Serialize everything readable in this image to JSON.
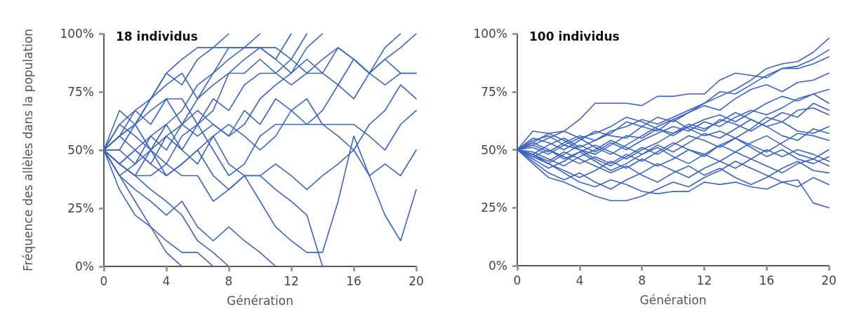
{
  "chart_data": [
    {
      "type": "line",
      "title": "18 individus",
      "xlabel": "Génération",
      "ylabel": "Fréquence des allèles dans la population",
      "x": [
        0,
        1,
        2,
        3,
        4,
        5,
        6,
        7,
        8,
        9,
        10,
        11,
        12,
        13,
        14,
        15,
        16,
        17,
        18,
        19,
        20
      ],
      "xlim": [
        0,
        20
      ],
      "xticks": [
        0,
        4,
        8,
        12,
        16,
        20
      ],
      "ylim": [
        0,
        100
      ],
      "yticks": [
        {
          "value": 0,
          "label": "0%"
        },
        {
          "value": 25,
          "label": "25%"
        },
        {
          "value": 50,
          "label": "50%"
        },
        {
          "value": 75,
          "label": "75%"
        },
        {
          "value": 100,
          "label": "100%"
        }
      ],
      "grid": false,
      "marker": "none",
      "line_style": "solid",
      "series": [
        {
          "color": "#3b64c2",
          "values": [
            50,
            56,
            67,
            72,
            83,
            89,
            94,
            94,
            100,
            null,
            null,
            null,
            null,
            null,
            null,
            null,
            null,
            null,
            null,
            null,
            null
          ]
        },
        {
          "color": "#3b64c2",
          "values": [
            50,
            67,
            61,
            72,
            83,
            78,
            89,
            94,
            94,
            94,
            100,
            null,
            null,
            null,
            null,
            null,
            null,
            null,
            null,
            null,
            null
          ]
        },
        {
          "color": "#3b64c2",
          "values": [
            50,
            56,
            61,
            72,
            78,
            83,
            72,
            83,
            94,
            94,
            94,
            89,
            100,
            null,
            null,
            null,
            null,
            null,
            null,
            null,
            null
          ]
        },
        {
          "color": "#3b64c2",
          "values": [
            50,
            50,
            61,
            67,
            72,
            61,
            72,
            78,
            83,
            83,
            89,
            83,
            89,
            100,
            null,
            null,
            null,
            null,
            null,
            null,
            null
          ]
        },
        {
          "color": "#3b64c2",
          "values": [
            50,
            61,
            56,
            50,
            61,
            67,
            78,
            83,
            89,
            94,
            94,
            89,
            83,
            94,
            100,
            null,
            null,
            null,
            null,
            null,
            null
          ]
        },
        {
          "color": "#3b64c2",
          "values": [
            50,
            44,
            50,
            56,
            61,
            50,
            61,
            72,
            67,
            78,
            83,
            83,
            78,
            83,
            89,
            94,
            89,
            83,
            89,
            94,
            100
          ]
        },
        {
          "color": "#3b64c2",
          "values": [
            50,
            56,
            50,
            44,
            56,
            61,
            56,
            61,
            56,
            67,
            61,
            72,
            67,
            61,
            67,
            78,
            89,
            83,
            94,
            100,
            null
          ]
        },
        {
          "color": "#3b64c2",
          "values": [
            50,
            61,
            67,
            61,
            72,
            72,
            61,
            67,
            83,
            89,
            94,
            94,
            89,
            83,
            83,
            78,
            72,
            83,
            89,
            83,
            83
          ]
        },
        {
          "color": "#3b64c2",
          "values": [
            50,
            50,
            44,
            56,
            50,
            61,
            67,
            61,
            56,
            61,
            72,
            78,
            83,
            89,
            83,
            94,
            89,
            83,
            78,
            83,
            83
          ]
        },
        {
          "color": "#3b64c2",
          "values": [
            50,
            44,
            39,
            50,
            56,
            50,
            44,
            56,
            61,
            56,
            50,
            56,
            67,
            72,
            61,
            56,
            50,
            61,
            67,
            78,
            72
          ]
        },
        {
          "color": "#3b64c2",
          "values": [
            50,
            56,
            61,
            50,
            44,
            56,
            61,
            50,
            39,
            44,
            56,
            61,
            61,
            61,
            61,
            61,
            61,
            56,
            50,
            61,
            67
          ]
        },
        {
          "color": "#3b64c2",
          "values": [
            50,
            39,
            44,
            50,
            39,
            44,
            50,
            39,
            33,
            39,
            28,
            17,
            11,
            6,
            6,
            28,
            56,
            39,
            22,
            11,
            33
          ]
        },
        {
          "color": "#3b64c2",
          "values": [
            50,
            44,
            39,
            39,
            44,
            39,
            39,
            28,
            33,
            39,
            39,
            33,
            28,
            22,
            0,
            null,
            null,
            null,
            null,
            null,
            null
          ]
        },
        {
          "color": "#3b64c2",
          "values": [
            50,
            39,
            33,
            28,
            22,
            28,
            17,
            11,
            17,
            11,
            6,
            0,
            null,
            null,
            null,
            null,
            null,
            null,
            null,
            null,
            null
          ]
        },
        {
          "color": "#3b64c2",
          "values": [
            50,
            39,
            28,
            17,
            11,
            6,
            6,
            0,
            null,
            null,
            null,
            null,
            null,
            null,
            null,
            null,
            null,
            null,
            null,
            null,
            null
          ]
        },
        {
          "color": "#3b64c2",
          "values": [
            50,
            33,
            22,
            17,
            6,
            0,
            null,
            null,
            null,
            null,
            null,
            null,
            null,
            null,
            null,
            null,
            null,
            null,
            null,
            null,
            null
          ]
        },
        {
          "color": "#3b64c2",
          "values": [
            50,
            44,
            39,
            33,
            28,
            22,
            11,
            6,
            0,
            null,
            null,
            null,
            null,
            null,
            null,
            null,
            null,
            null,
            null,
            null,
            null
          ]
        },
        {
          "color": "#3b64c2",
          "values": [
            50,
            44,
            50,
            44,
            39,
            44,
            50,
            56,
            44,
            39,
            39,
            44,
            39,
            33,
            39,
            44,
            50,
            39,
            44,
            39,
            50
          ]
        }
      ]
    },
    {
      "type": "line",
      "title": "100 individus",
      "xlabel": "Génération",
      "x": [
        0,
        1,
        2,
        3,
        4,
        5,
        6,
        7,
        8,
        9,
        10,
        11,
        12,
        13,
        14,
        15,
        16,
        17,
        18,
        19,
        20
      ],
      "xlim": [
        0,
        20
      ],
      "xticks": [
        0,
        4,
        8,
        12,
        16,
        20
      ],
      "ylim": [
        0,
        100
      ],
      "yticks": [
        {
          "value": 0,
          "label": "0%"
        },
        {
          "value": 25,
          "label": "25%"
        },
        {
          "value": 50,
          "label": "50%"
        },
        {
          "value": 75,
          "label": "75%"
        },
        {
          "value": 100,
          "label": "100%"
        }
      ],
      "grid": false,
      "marker": "none",
      "line_style": "solid",
      "series": [
        {
          "color": "#3b64c2",
          "values": [
            50,
            52,
            49,
            53,
            56,
            54,
            58,
            60,
            63,
            61,
            64,
            67,
            70,
            73,
            76,
            80,
            85,
            87,
            88,
            92,
            98
          ]
        },
        {
          "color": "#3b64c2",
          "values": [
            50,
            55,
            53,
            50,
            54,
            58,
            56,
            55,
            60,
            64,
            62,
            66,
            70,
            75,
            74,
            78,
            82,
            85,
            86,
            89,
            93
          ]
        },
        {
          "color": "#3b64c2",
          "values": [
            50,
            58,
            57,
            58,
            63,
            70,
            70,
            70,
            69,
            73,
            73,
            74,
            74,
            80,
            83,
            82,
            81,
            85,
            85,
            87,
            90
          ]
        },
        {
          "color": "#3b64c2",
          "values": [
            50,
            48,
            52,
            55,
            51,
            54,
            57,
            62,
            60,
            58,
            63,
            66,
            69,
            67,
            72,
            76,
            78,
            75,
            79,
            80,
            83
          ]
        },
        {
          "color": "#3b64c2",
          "values": [
            50,
            53,
            57,
            54,
            50,
            48,
            52,
            56,
            55,
            59,
            57,
            60,
            63,
            65,
            62,
            66,
            70,
            73,
            71,
            74,
            76
          ]
        },
        {
          "color": "#3b64c2",
          "values": [
            50,
            47,
            44,
            48,
            52,
            49,
            53,
            50,
            54,
            57,
            60,
            58,
            62,
            60,
            64,
            67,
            65,
            68,
            72,
            74,
            70
          ]
        },
        {
          "color": "#3b64c2",
          "values": [
            50,
            54,
            56,
            52,
            55,
            57,
            60,
            64,
            62,
            59,
            56,
            60,
            58,
            63,
            61,
            58,
            62,
            66,
            64,
            70,
            67
          ]
        },
        {
          "color": "#3b64c2",
          "values": [
            50,
            46,
            42,
            45,
            49,
            52,
            49,
            46,
            50,
            53,
            57,
            61,
            59,
            62,
            66,
            63,
            60,
            62,
            67,
            68,
            65
          ]
        },
        {
          "color": "#3b64c2",
          "values": [
            50,
            52,
            55,
            58,
            55,
            51,
            48,
            52,
            56,
            60,
            63,
            59,
            56,
            58,
            55,
            59,
            64,
            62,
            58,
            57,
            60
          ]
        },
        {
          "color": "#3b64c2",
          "values": [
            50,
            49,
            46,
            43,
            47,
            50,
            54,
            51,
            48,
            52,
            49,
            53,
            57,
            55,
            59,
            63,
            60,
            56,
            54,
            59,
            57
          ]
        },
        {
          "color": "#3b64c2",
          "values": [
            50,
            51,
            48,
            52,
            50,
            46,
            43,
            47,
            51,
            48,
            52,
            56,
            54,
            51,
            55,
            52,
            49,
            53,
            57,
            56,
            54
          ]
        },
        {
          "color": "#3b64c2",
          "values": [
            50,
            47,
            50,
            47,
            44,
            47,
            44,
            48,
            45,
            49,
            53,
            50,
            47,
            52,
            49,
            53,
            56,
            52,
            48,
            46,
            50
          ]
        },
        {
          "color": "#3b64c2",
          "values": [
            50,
            53,
            50,
            46,
            49,
            45,
            41,
            44,
            48,
            51,
            47,
            44,
            48,
            52,
            55,
            51,
            47,
            50,
            46,
            44,
            47
          ]
        },
        {
          "color": "#3b64c2",
          "values": [
            50,
            48,
            44,
            41,
            38,
            41,
            45,
            42,
            46,
            43,
            46,
            50,
            48,
            45,
            42,
            46,
            50,
            47,
            50,
            48,
            45
          ]
        },
        {
          "color": "#3b64c2",
          "values": [
            50,
            45,
            40,
            37,
            40,
            36,
            33,
            37,
            40,
            44,
            41,
            38,
            42,
            45,
            49,
            46,
            43,
            40,
            44,
            46,
            43
          ]
        },
        {
          "color": "#3b64c2",
          "values": [
            50,
            48,
            45,
            49,
            46,
            43,
            40,
            43,
            39,
            36,
            40,
            43,
            39,
            42,
            38,
            35,
            38,
            42,
            45,
            41,
            40
          ]
        },
        {
          "color": "#3b64c2",
          "values": [
            50,
            44,
            38,
            36,
            33,
            30,
            28,
            28,
            30,
            33,
            36,
            34,
            38,
            41,
            45,
            42,
            39,
            36,
            34,
            38,
            35
          ]
        },
        {
          "color": "#3b64c2",
          "values": [
            50,
            47,
            44,
            40,
            36,
            34,
            37,
            35,
            32,
            31,
            32,
            32,
            36,
            35,
            36,
            34,
            33,
            36,
            37,
            27,
            25
          ]
        }
      ]
    }
  ]
}
